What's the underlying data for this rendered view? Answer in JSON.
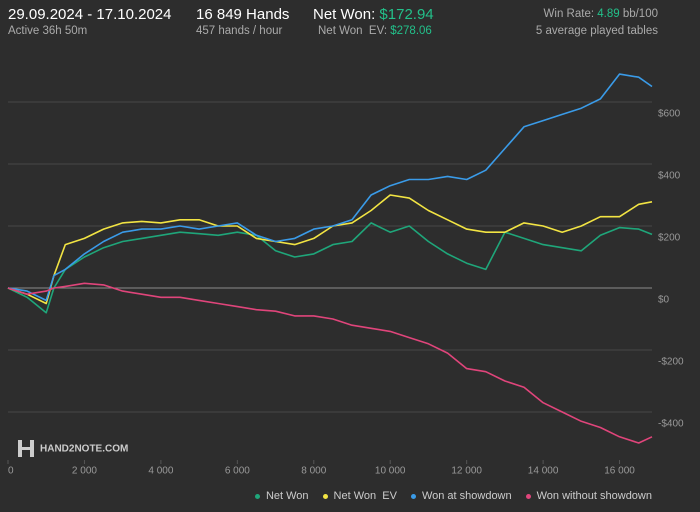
{
  "header": {
    "date_range": "29.09.2024 - 17.10.2024",
    "active": "Active 36h 50m",
    "hands": "16 849 Hands",
    "rate": "457 hands / hour",
    "net_won_label": "Net Won: ",
    "net_won": "$172.94",
    "net_won_ev_label": "Net Won  EV: ",
    "net_won_ev": "$278.06",
    "win_rate_label": "Win Rate: ",
    "win_rate": "4.89",
    "win_rate_unit": " bb/100",
    "tables": "5 average played tables"
  },
  "chart_data": {
    "type": "line",
    "watermark": "HAND2NOTE.COM",
    "grid": true,
    "x": [
      0,
      500,
      1000,
      1200,
      1500,
      2000,
      2500,
      3000,
      3500,
      4000,
      4500,
      5000,
      5500,
      6000,
      6500,
      7000,
      7500,
      8000,
      8500,
      9000,
      9500,
      10000,
      10500,
      11000,
      11500,
      12000,
      12500,
      13000,
      13500,
      14000,
      14500,
      15000,
      15500,
      16000,
      16500,
      16849
    ],
    "xlim": [
      0,
      16849
    ],
    "xticks": [
      0,
      {
        "value": 2000,
        "label": "2 000"
      },
      {
        "value": 4000,
        "label": "4 000"
      },
      {
        "value": 6000,
        "label": "6 000"
      },
      {
        "value": 8000,
        "label": "8 000"
      },
      {
        "value": 10000,
        "label": "10 000"
      },
      {
        "value": 12000,
        "label": "12 000"
      },
      {
        "value": 14000,
        "label": "14 000"
      },
      {
        "value": 16000,
        "label": "16 000"
      }
    ],
    "ylim": [
      -555,
      784
    ],
    "yticks": [
      {
        "value": -400,
        "label": "-$400"
      },
      {
        "value": -200,
        "label": "-$200"
      },
      {
        "value": 0,
        "label": "$0"
      },
      {
        "value": 200,
        "label": "$200"
      },
      {
        "value": 400,
        "label": "$400"
      },
      {
        "value": 600,
        "label": "$600"
      }
    ],
    "series": [
      {
        "name": "Net Won",
        "color": "#1fa67a",
        "values": [
          0,
          -30,
          -80,
          0,
          60,
          100,
          130,
          150,
          160,
          170,
          180,
          175,
          170,
          180,
          170,
          120,
          100,
          110,
          140,
          150,
          210,
          180,
          200,
          150,
          110,
          80,
          60,
          180,
          160,
          140,
          130,
          120,
          170,
          195,
          190,
          173
        ]
      },
      {
        "name": "Net Won  EV",
        "color": "#f2e443",
        "values": [
          0,
          -20,
          -50,
          40,
          140,
          160,
          190,
          210,
          215,
          210,
          220,
          220,
          200,
          200,
          160,
          150,
          140,
          160,
          200,
          210,
          250,
          300,
          290,
          250,
          220,
          190,
          180,
          180,
          210,
          200,
          180,
          200,
          230,
          230,
          270,
          278
        ]
      },
      {
        "name": "Won at showdown",
        "color": "#3a9be8",
        "values": [
          0,
          -10,
          -40,
          40,
          60,
          110,
          150,
          180,
          190,
          190,
          200,
          190,
          200,
          210,
          170,
          150,
          160,
          190,
          200,
          220,
          300,
          330,
          350,
          350,
          360,
          350,
          380,
          450,
          520,
          540,
          560,
          580,
          610,
          690,
          680,
          650
        ]
      },
      {
        "name": "Won without showdown",
        "color": "#e0457b",
        "values": [
          0,
          -20,
          -10,
          0,
          5,
          15,
          10,
          -10,
          -20,
          -30,
          -30,
          -40,
          -50,
          -60,
          -70,
          -75,
          -90,
          -90,
          -100,
          -120,
          -130,
          -140,
          -160,
          -180,
          -210,
          -260,
          -270,
          -300,
          -320,
          -370,
          -400,
          -430,
          -450,
          -480,
          -500,
          -480
        ]
      }
    ]
  }
}
